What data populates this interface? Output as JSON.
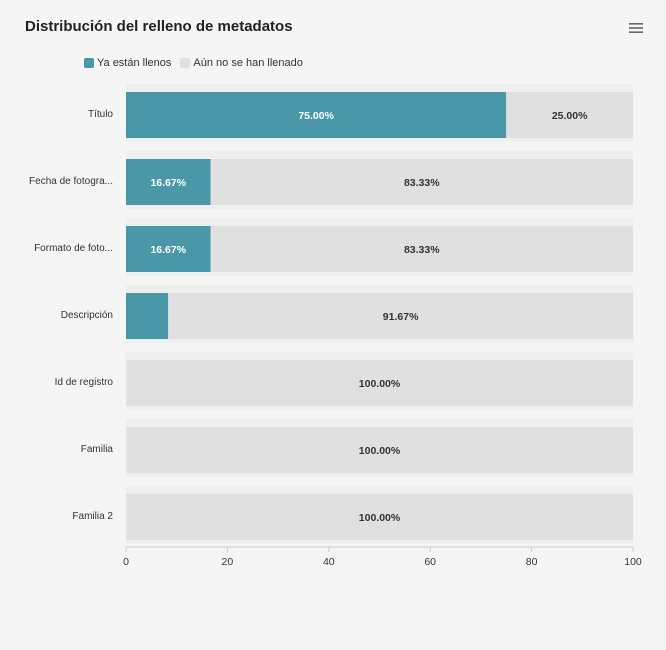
{
  "title": "Distribución del relleno de metadatos",
  "menu_icon": "hamburger-menu-icon",
  "colors": {
    "filled": "#4a97a8",
    "empty": "#e0e0e0",
    "band": "#efefef"
  },
  "chart_data": {
    "type": "bar",
    "orientation": "horizontal",
    "stacked": true,
    "categories": [
      "Título",
      "Fecha de fotogra...",
      "Formato de foto...",
      "Descripción",
      "Id de registro",
      "Familia",
      "Familia 2"
    ],
    "series": [
      {
        "name": "Ya están llenos",
        "values": [
          75.0,
          16.67,
          16.67,
          8.33,
          0,
          0,
          0
        ],
        "labels": [
          "75.00%",
          "16.67%",
          "16.67%",
          "",
          "",
          "",
          ""
        ]
      },
      {
        "name": "Aún no se han llenado",
        "values": [
          25.0,
          83.33,
          83.33,
          91.67,
          100,
          100,
          100
        ],
        "labels": [
          "25.00%",
          "83.33%",
          "83.33%",
          "91.67%",
          "100.00%",
          "100.00%",
          "100.00%"
        ]
      }
    ],
    "xlim": [
      0,
      100
    ],
    "xticks": [
      "0",
      "20",
      "40",
      "60",
      "80",
      "100"
    ],
    "legend_position": "top-left"
  }
}
